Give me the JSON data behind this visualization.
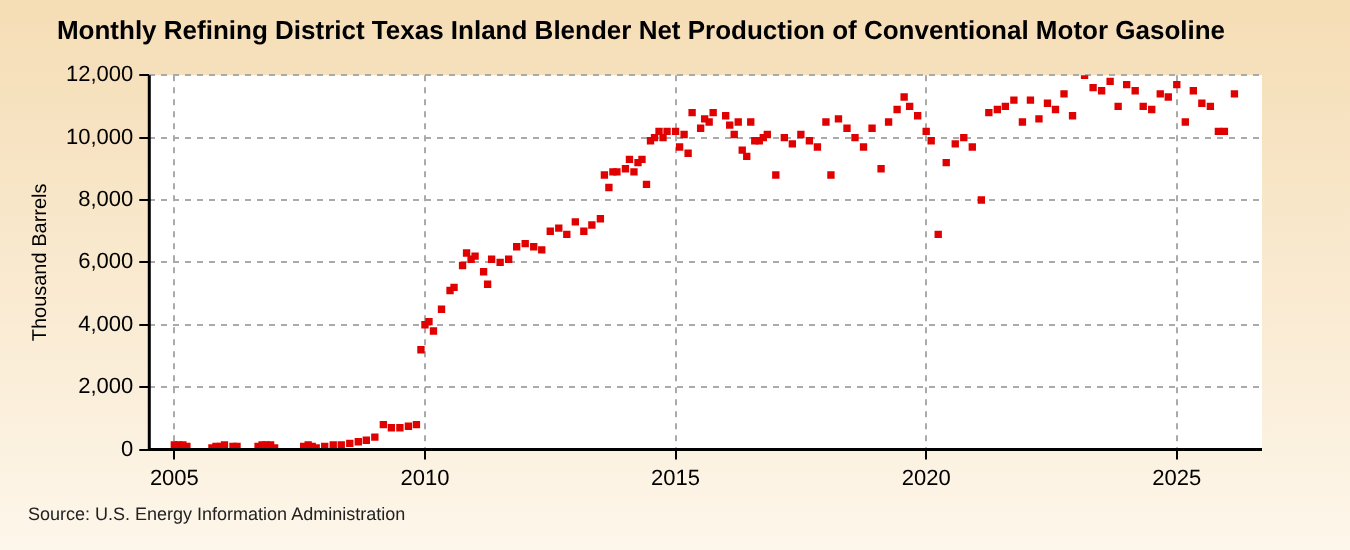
{
  "chart_data": {
    "type": "scatter",
    "title": "Monthly Refining District Texas Inland Blender Net Production of Conventional Motor Gasoline",
    "ylabel": "Thousand Barrels",
    "annotations": [
      "Source: U.S. Energy Information Administration"
    ],
    "xlim": [
      2004.5,
      2026.7
    ],
    "xticks": [
      2005,
      2010,
      2015,
      2020,
      2025
    ],
    "ylim": [
      0,
      12000
    ],
    "yticks": [
      0,
      {
        "value": 2000,
        "label": "2,000"
      },
      {
        "value": 4000,
        "label": "4,000"
      },
      {
        "value": 6000,
        "label": "6,000"
      },
      {
        "value": 8000,
        "label": "8,000"
      },
      {
        "value": 10000,
        "label": "10,000"
      },
      {
        "value": 12000,
        "label": "12,000"
      }
    ],
    "grid": true,
    "marker": "square",
    "legend": false,
    "series": [
      {
        "color": "#e00000",
        "x": [
          2005.0,
          2005.08,
          2005.17,
          2005.25,
          2005.75,
          2005.83,
          2005.92,
          2006.0,
          2006.17,
          2006.25,
          2006.67,
          2006.75,
          2006.83,
          2006.92,
          2007.0,
          2007.58,
          2007.67,
          2007.75,
          2007.83,
          2008.0,
          2008.17,
          2008.33,
          2008.5,
          2008.67,
          2008.83,
          2009.0,
          2009.17,
          2009.33,
          2009.5,
          2009.67,
          2009.83,
          2009.92,
          2010.0,
          2010.08,
          2010.17,
          2010.33,
          2010.5,
          2010.58,
          2010.75,
          2010.83,
          2010.92,
          2011.0,
          2011.17,
          2011.25,
          2011.33,
          2011.5,
          2011.67,
          2011.83,
          2012.0,
          2012.17,
          2012.33,
          2012.5,
          2012.67,
          2012.83,
          2013.0,
          2013.17,
          2013.33,
          2013.5,
          2013.58,
          2013.67,
          2013.75,
          2013.83,
          2014.0,
          2014.08,
          2014.17,
          2014.25,
          2014.33,
          2014.42,
          2014.5,
          2014.58,
          2014.67,
          2014.75,
          2014.83,
          2015.0,
          2015.08,
          2015.17,
          2015.25,
          2015.33,
          2015.5,
          2015.58,
          2015.67,
          2015.75,
          2016.0,
          2016.08,
          2016.17,
          2016.25,
          2016.33,
          2016.42,
          2016.5,
          2016.58,
          2016.67,
          2016.75,
          2016.83,
          2017.0,
          2017.17,
          2017.33,
          2017.5,
          2017.67,
          2017.83,
          2018.0,
          2018.1,
          2018.25,
          2018.42,
          2018.58,
          2018.75,
          2018.92,
          2019.1,
          2019.25,
          2019.42,
          2019.56,
          2019.67,
          2019.83,
          2020.0,
          2020.1,
          2020.24,
          2020.4,
          2020.58,
          2020.75,
          2020.92,
          2021.1,
          2021.25,
          2021.42,
          2021.58,
          2021.75,
          2021.92,
          2022.08,
          2022.25,
          2022.42,
          2022.58,
          2022.75,
          2022.92,
          2023.16,
          2023.33,
          2023.5,
          2023.67,
          2023.83,
          2024.0,
          2024.17,
          2024.33,
          2024.5,
          2024.67,
          2024.83,
          2025.0,
          2025.17,
          2025.33,
          2025.5,
          2025.67,
          2025.83,
          2025.95,
          2026.15
        ],
        "values": [
          150,
          150,
          150,
          100,
          50,
          100,
          100,
          150,
          100,
          100,
          100,
          150,
          150,
          150,
          50,
          100,
          150,
          100,
          50,
          100,
          150,
          150,
          200,
          250,
          300,
          400,
          800,
          700,
          700,
          750,
          800,
          3200,
          4000,
          4100,
          3800,
          4500,
          5100,
          5200,
          5900,
          6300,
          6100,
          6200,
          5700,
          5300,
          6100,
          6000,
          6100,
          6500,
          6600,
          6500,
          6400,
          7000,
          7100,
          6900,
          7300,
          7000,
          7200,
          7400,
          8800,
          8400,
          8900,
          8900,
          9000,
          9300,
          8900,
          9200,
          9300,
          8500,
          9900,
          10000,
          10200,
          10000,
          10200,
          10200,
          9700,
          10100,
          9500,
          10800,
          10300,
          10600,
          10500,
          10800,
          10700,
          10400,
          10100,
          10500,
          9600,
          9400,
          10500,
          9900,
          9900,
          10000,
          10100,
          8800,
          10000,
          9800,
          10100,
          9900,
          9700,
          10500,
          8800,
          10600,
          10300,
          10000,
          9700,
          10300,
          9000,
          10500,
          10900,
          11300,
          11000,
          10700,
          10200,
          9900,
          6900,
          9200,
          9800,
          10000,
          9700,
          8000,
          10800,
          10900,
          11000,
          11200,
          10500,
          11200,
          10600,
          11100,
          10900,
          11400,
          10700,
          12000,
          11600,
          11500,
          11800,
          11000,
          11700,
          11500,
          11000,
          10900,
          11400,
          11300,
          11700,
          10500,
          11500,
          11100,
          11000,
          10200,
          10200,
          11400
        ]
      }
    ]
  }
}
